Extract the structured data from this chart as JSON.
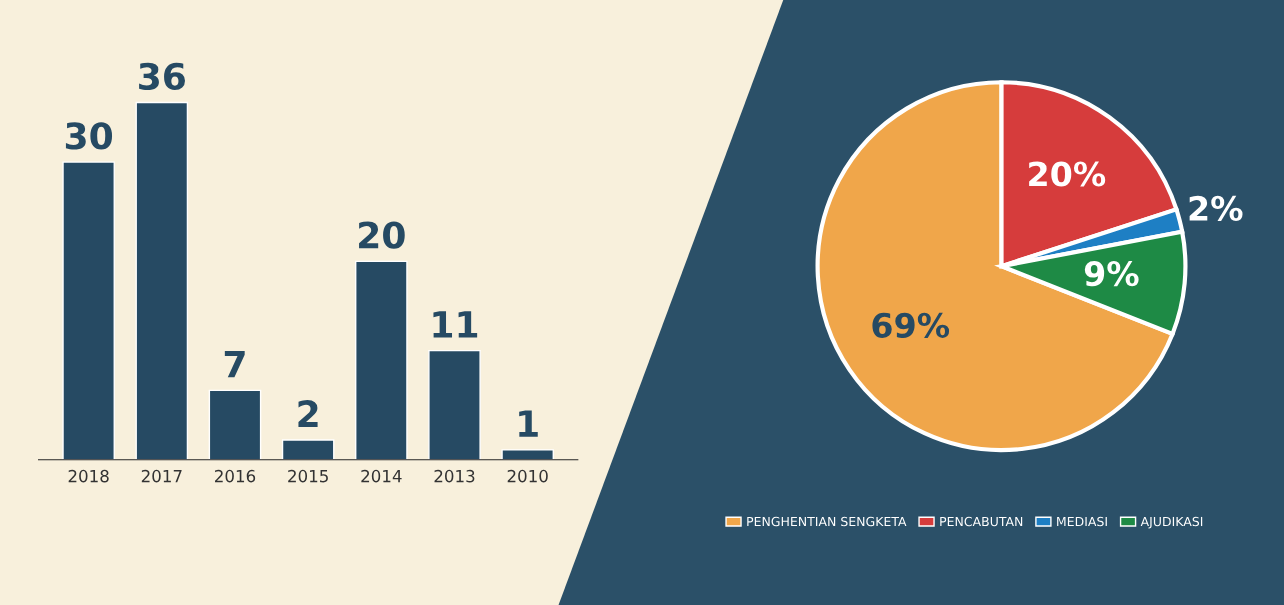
{
  "chart_data": [
    {
      "type": "bar",
      "categories": [
        "2018",
        "2017",
        "2016",
        "2015",
        "2014",
        "2013",
        "2010"
      ],
      "values": [
        30,
        36,
        7,
        2,
        20,
        11,
        1
      ],
      "color": "#264a63",
      "data_labels": true,
      "tick_labels": "x"
    },
    {
      "type": "pie",
      "categories": [
        "PENGHENTIAN SENGKETA",
        "PENCABUTAN",
        "MEDIASI",
        "AJUDIKASI"
      ],
      "values": [
        69,
        20,
        2,
        9
      ],
      "colors": [
        "#f0a64a",
        "#d63c3c",
        "#1e7fc4",
        "#1e8a45"
      ],
      "value_labels": [
        "69%",
        "20%",
        "2%",
        "9%"
      ],
      "legend": "bottom"
    }
  ]
}
